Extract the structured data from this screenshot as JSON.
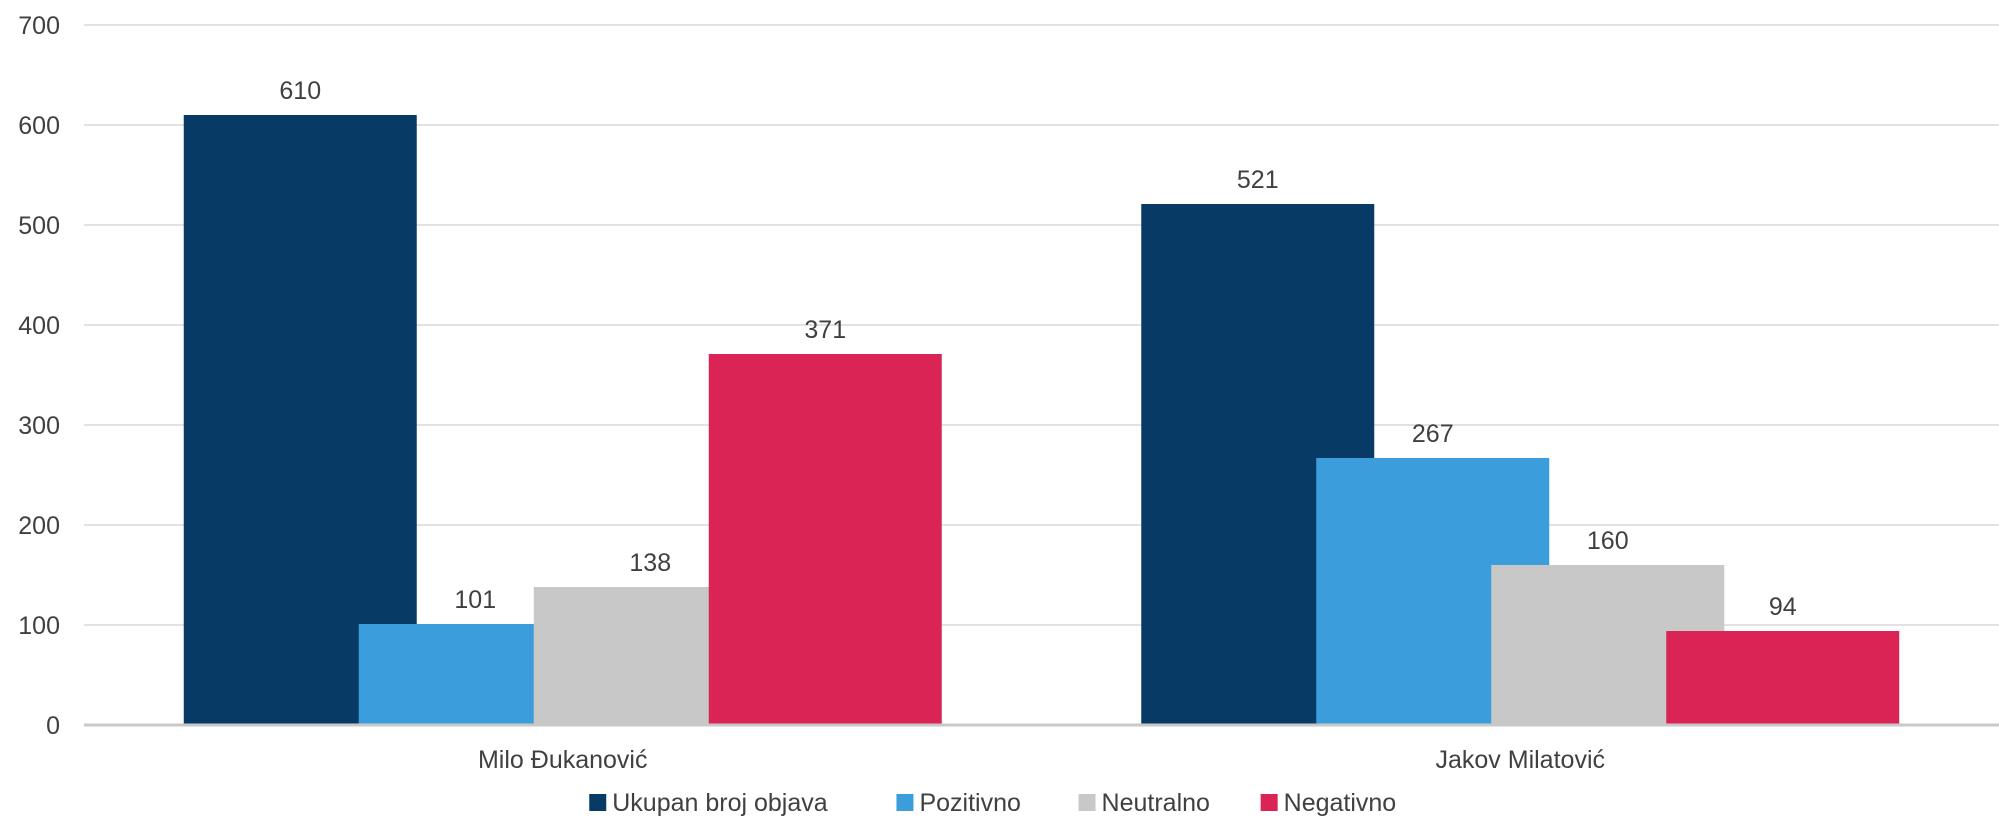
{
  "chart_data": {
    "type": "bar",
    "categories": [
      "Milo Đukanović",
      "Jakov Milatović"
    ],
    "series": [
      {
        "name": "Ukupan broj objava",
        "color": "#073b66",
        "values": [
          610,
          521
        ]
      },
      {
        "name": "Pozitivno",
        "color": "#3c9ddc",
        "values": [
          101,
          267
        ]
      },
      {
        "name": "Neutralno",
        "color": "#c8c8c8",
        "values": [
          138,
          160
        ]
      },
      {
        "name": "Negativno",
        "color": "#d92455",
        "values": [
          371,
          94
        ]
      }
    ],
    "ylim": [
      0,
      700
    ],
    "yticks": [
      "0",
      "100",
      "200",
      "300",
      "400",
      "500",
      "600",
      "700"
    ],
    "grid": true,
    "legend_position": "bottom",
    "title": "",
    "xlabel": "",
    "ylabel": ""
  }
}
